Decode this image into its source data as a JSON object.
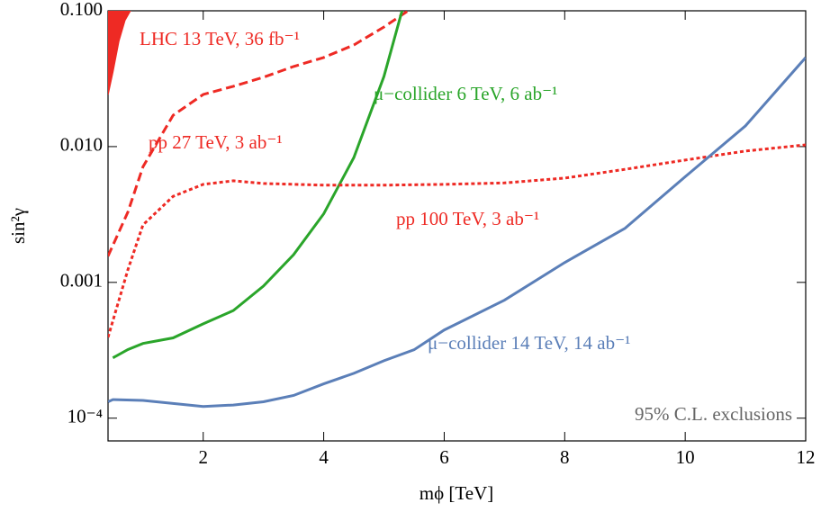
{
  "chart_data": {
    "type": "line",
    "xlabel": "mϕ  [TeV]",
    "ylabel": "sin²γ",
    "annotation": "95% C.L. exclusions",
    "xlim": [
      0.42,
      12
    ],
    "ylim": [
      6.8e-05,
      0.1
    ],
    "ylog": true,
    "xticks": [
      2,
      4,
      6,
      8,
      10,
      12
    ],
    "yticks": [
      {
        "value": 0.1,
        "label": "0.100"
      },
      {
        "value": 0.01,
        "label": "0.010"
      },
      {
        "value": 0.001,
        "label": "0.001"
      },
      {
        "value": 0.0001,
        "label": "10⁻⁴"
      }
    ],
    "series": [
      {
        "name": "LHC 13 TeV, 36 fb⁻¹",
        "color": "#ee2a24",
        "style": "filled",
        "x": [
          0.42,
          0.5,
          0.6,
          0.7,
          0.79
        ],
        "values": [
          0.0242,
          0.0354,
          0.06,
          0.085,
          0.1
        ]
      },
      {
        "name": "pp 27 TeV, 3 ab⁻¹",
        "color": "#ee2a24",
        "style": "dashed",
        "x": [
          0.42,
          0.75,
          1,
          1.5,
          2,
          2.5,
          3,
          3.5,
          4,
          4.5,
          5,
          5.4
        ],
        "values": [
          0.00156,
          0.0033,
          0.0071,
          0.017,
          0.0242,
          0.0278,
          0.0324,
          0.0389,
          0.0453,
          0.056,
          0.076,
          0.1
        ]
      },
      {
        "name": "μ−collider 6 TeV, 6 ab⁻¹",
        "color": "#2aa52a",
        "style": "solid",
        "x": [
          0.5,
          0.75,
          1,
          1.5,
          2,
          2.5,
          3,
          3.5,
          4,
          4.5,
          5,
          5.3
        ],
        "values": [
          0.000278,
          0.00032,
          0.000355,
          0.00039,
          0.000495,
          0.00062,
          0.00094,
          0.0016,
          0.0032,
          0.0083,
          0.0329,
          0.1
        ]
      },
      {
        "name": "pp 100 TeV, 3 ab⁻¹",
        "color": "#ee2a24",
        "style": "dotted",
        "x": [
          0.42,
          0.75,
          1,
          1.5,
          2,
          2.5,
          3,
          4,
          5,
          6,
          7,
          8,
          9,
          10,
          11,
          12
        ],
        "values": [
          0.000394,
          0.00124,
          0.00265,
          0.0043,
          0.00527,
          0.0056,
          0.00535,
          0.0052,
          0.0052,
          0.00527,
          0.0054,
          0.00586,
          0.0068,
          0.00796,
          0.00927,
          0.0103
        ]
      },
      {
        "name": "μ−collider 14 TeV, 14 ab⁻¹",
        "color": "#5b7fb8",
        "style": "solid",
        "x": [
          0.42,
          0.5,
          1,
          2,
          2.5,
          3,
          3.5,
          4,
          4.5,
          5,
          5.5,
          6,
          7,
          8,
          9,
          10,
          11,
          12
        ],
        "values": [
          0.000132,
          0.000137,
          0.000135,
          0.000122,
          0.000125,
          0.000132,
          0.000147,
          0.000179,
          0.000214,
          0.000265,
          0.000319,
          0.000446,
          0.00074,
          0.0014,
          0.0025,
          0.006,
          0.0142,
          0.0453
        ]
      }
    ]
  }
}
